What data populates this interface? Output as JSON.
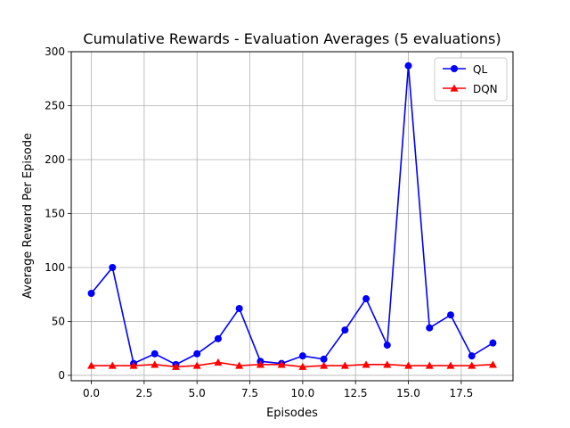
{
  "chart_data": {
    "type": "line",
    "title": "Cumulative Rewards - Evaluation Averages (5 evaluations)",
    "xlabel": "Episodes",
    "ylabel": "Average Reward Per Episode",
    "xlim": [
      -0.95,
      19.95
    ],
    "ylim": [
      -5,
      300
    ],
    "xticks": [
      0,
      2.5,
      5,
      7.5,
      10,
      12.5,
      15,
      17.5
    ],
    "xtick_labels": [
      "0.0",
      "2.5",
      "5.0",
      "7.5",
      "10.0",
      "12.5",
      "15.0",
      "17.5"
    ],
    "yticks": [
      0,
      50,
      100,
      150,
      200,
      250,
      300
    ],
    "ytick_labels": [
      "0",
      "50",
      "100",
      "150",
      "200",
      "250",
      "300"
    ],
    "grid": true,
    "legend_position": "top-right",
    "x": [
      0,
      1,
      2,
      3,
      4,
      5,
      6,
      7,
      8,
      9,
      10,
      11,
      12,
      13,
      14,
      15,
      16,
      17,
      18,
      19
    ],
    "series": [
      {
        "name": "QL",
        "color": "#0000ff",
        "marker": "circle",
        "values": [
          76,
          100,
          11,
          20,
          10,
          20,
          34,
          62,
          13,
          11,
          18,
          15,
          42,
          71,
          28,
          287,
          44,
          56,
          18,
          30
        ]
      },
      {
        "name": "DQN",
        "color": "#ff0000",
        "marker": "triangle",
        "values": [
          9,
          9,
          9,
          10,
          8,
          9,
          12,
          9,
          10,
          10,
          8,
          9,
          9,
          10,
          10,
          9,
          9,
          9,
          9,
          10
        ]
      }
    ]
  }
}
